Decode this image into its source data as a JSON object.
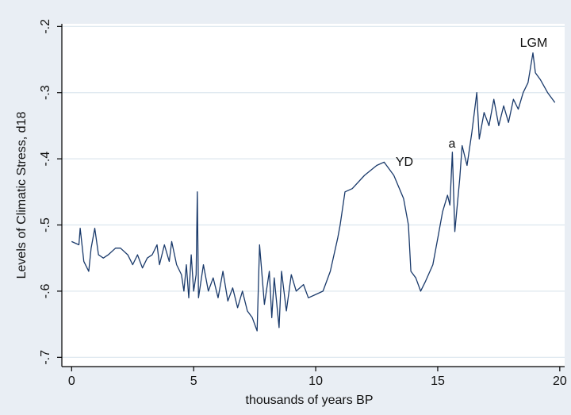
{
  "chart_data": {
    "type": "line",
    "xlabel": "thousands of years BP",
    "ylabel": "Levels of Climatic Stress, d18",
    "annotations": [
      "LGM",
      "YD",
      "a"
    ],
    "color": "#1a3a6b",
    "grid": true,
    "xlim": [
      -0.4,
      20.2
    ],
    "ylim": [
      -0.714,
      -0.196
    ],
    "xticks": [
      0,
      5,
      10,
      15,
      20
    ],
    "yticks": [
      {
        "value": -0.2,
        "label": "-.2"
      },
      {
        "value": -0.3,
        "label": "-.3"
      },
      {
        "value": -0.4,
        "label": "-.4"
      },
      {
        "value": -0.5,
        "label": "-.5"
      },
      {
        "value": -0.6,
        "label": "-.6"
      },
      {
        "value": -0.7,
        "label": "-.7"
      }
    ],
    "x": [
      0.0,
      0.3,
      0.35,
      0.5,
      0.7,
      0.8,
      0.95,
      1.1,
      1.3,
      1.5,
      1.8,
      2.0,
      2.3,
      2.5,
      2.7,
      2.9,
      3.1,
      3.3,
      3.5,
      3.6,
      3.8,
      4.0,
      4.1,
      4.3,
      4.5,
      4.6,
      4.7,
      4.8,
      4.9,
      5.0,
      5.1,
      5.15,
      5.2,
      5.4,
      5.6,
      5.8,
      6.0,
      6.2,
      6.4,
      6.6,
      6.8,
      7.0,
      7.2,
      7.4,
      7.6,
      7.7,
      7.9,
      8.1,
      8.2,
      8.3,
      8.5,
      8.6,
      8.8,
      9.0,
      9.2,
      9.5,
      9.7,
      10.0,
      10.3,
      10.6,
      10.9,
      11.0,
      11.2,
      11.5,
      12.0,
      12.5,
      12.8,
      13.2,
      13.6,
      13.8,
      13.9,
      14.1,
      14.3,
      14.5,
      14.8,
      15.0,
      15.2,
      15.4,
      15.5,
      15.6,
      15.7,
      15.9,
      16.0,
      16.2,
      16.4,
      16.6,
      16.7,
      16.9,
      17.1,
      17.3,
      17.5,
      17.7,
      17.9,
      18.1,
      18.3,
      18.5,
      18.7,
      18.9,
      19.0,
      19.2,
      19.5,
      19.8
    ],
    "values": [
      -0.525,
      -0.53,
      -0.505,
      -0.555,
      -0.57,
      -0.535,
      -0.505,
      -0.545,
      -0.55,
      -0.545,
      -0.535,
      -0.535,
      -0.545,
      -0.56,
      -0.545,
      -0.565,
      -0.55,
      -0.545,
      -0.53,
      -0.56,
      -0.53,
      -0.555,
      -0.525,
      -0.56,
      -0.575,
      -0.6,
      -0.56,
      -0.61,
      -0.545,
      -0.6,
      -0.575,
      -0.45,
      -0.61,
      -0.56,
      -0.6,
      -0.58,
      -0.61,
      -0.57,
      -0.615,
      -0.595,
      -0.625,
      -0.6,
      -0.63,
      -0.64,
      -0.66,
      -0.53,
      -0.62,
      -0.57,
      -0.64,
      -0.58,
      -0.655,
      -0.57,
      -0.63,
      -0.575,
      -0.6,
      -0.59,
      -0.61,
      -0.605,
      -0.6,
      -0.57,
      -0.52,
      -0.5,
      -0.45,
      -0.445,
      -0.425,
      -0.41,
      -0.405,
      -0.425,
      -0.46,
      -0.5,
      -0.57,
      -0.58,
      -0.6,
      -0.585,
      -0.56,
      -0.52,
      -0.48,
      -0.455,
      -0.47,
      -0.39,
      -0.51,
      -0.43,
      -0.38,
      -0.41,
      -0.36,
      -0.3,
      -0.37,
      -0.33,
      -0.35,
      -0.31,
      -0.35,
      -0.32,
      -0.345,
      -0.31,
      -0.325,
      -0.3,
      -0.285,
      -0.24,
      -0.27,
      -0.28,
      -0.3,
      -0.315
    ]
  }
}
